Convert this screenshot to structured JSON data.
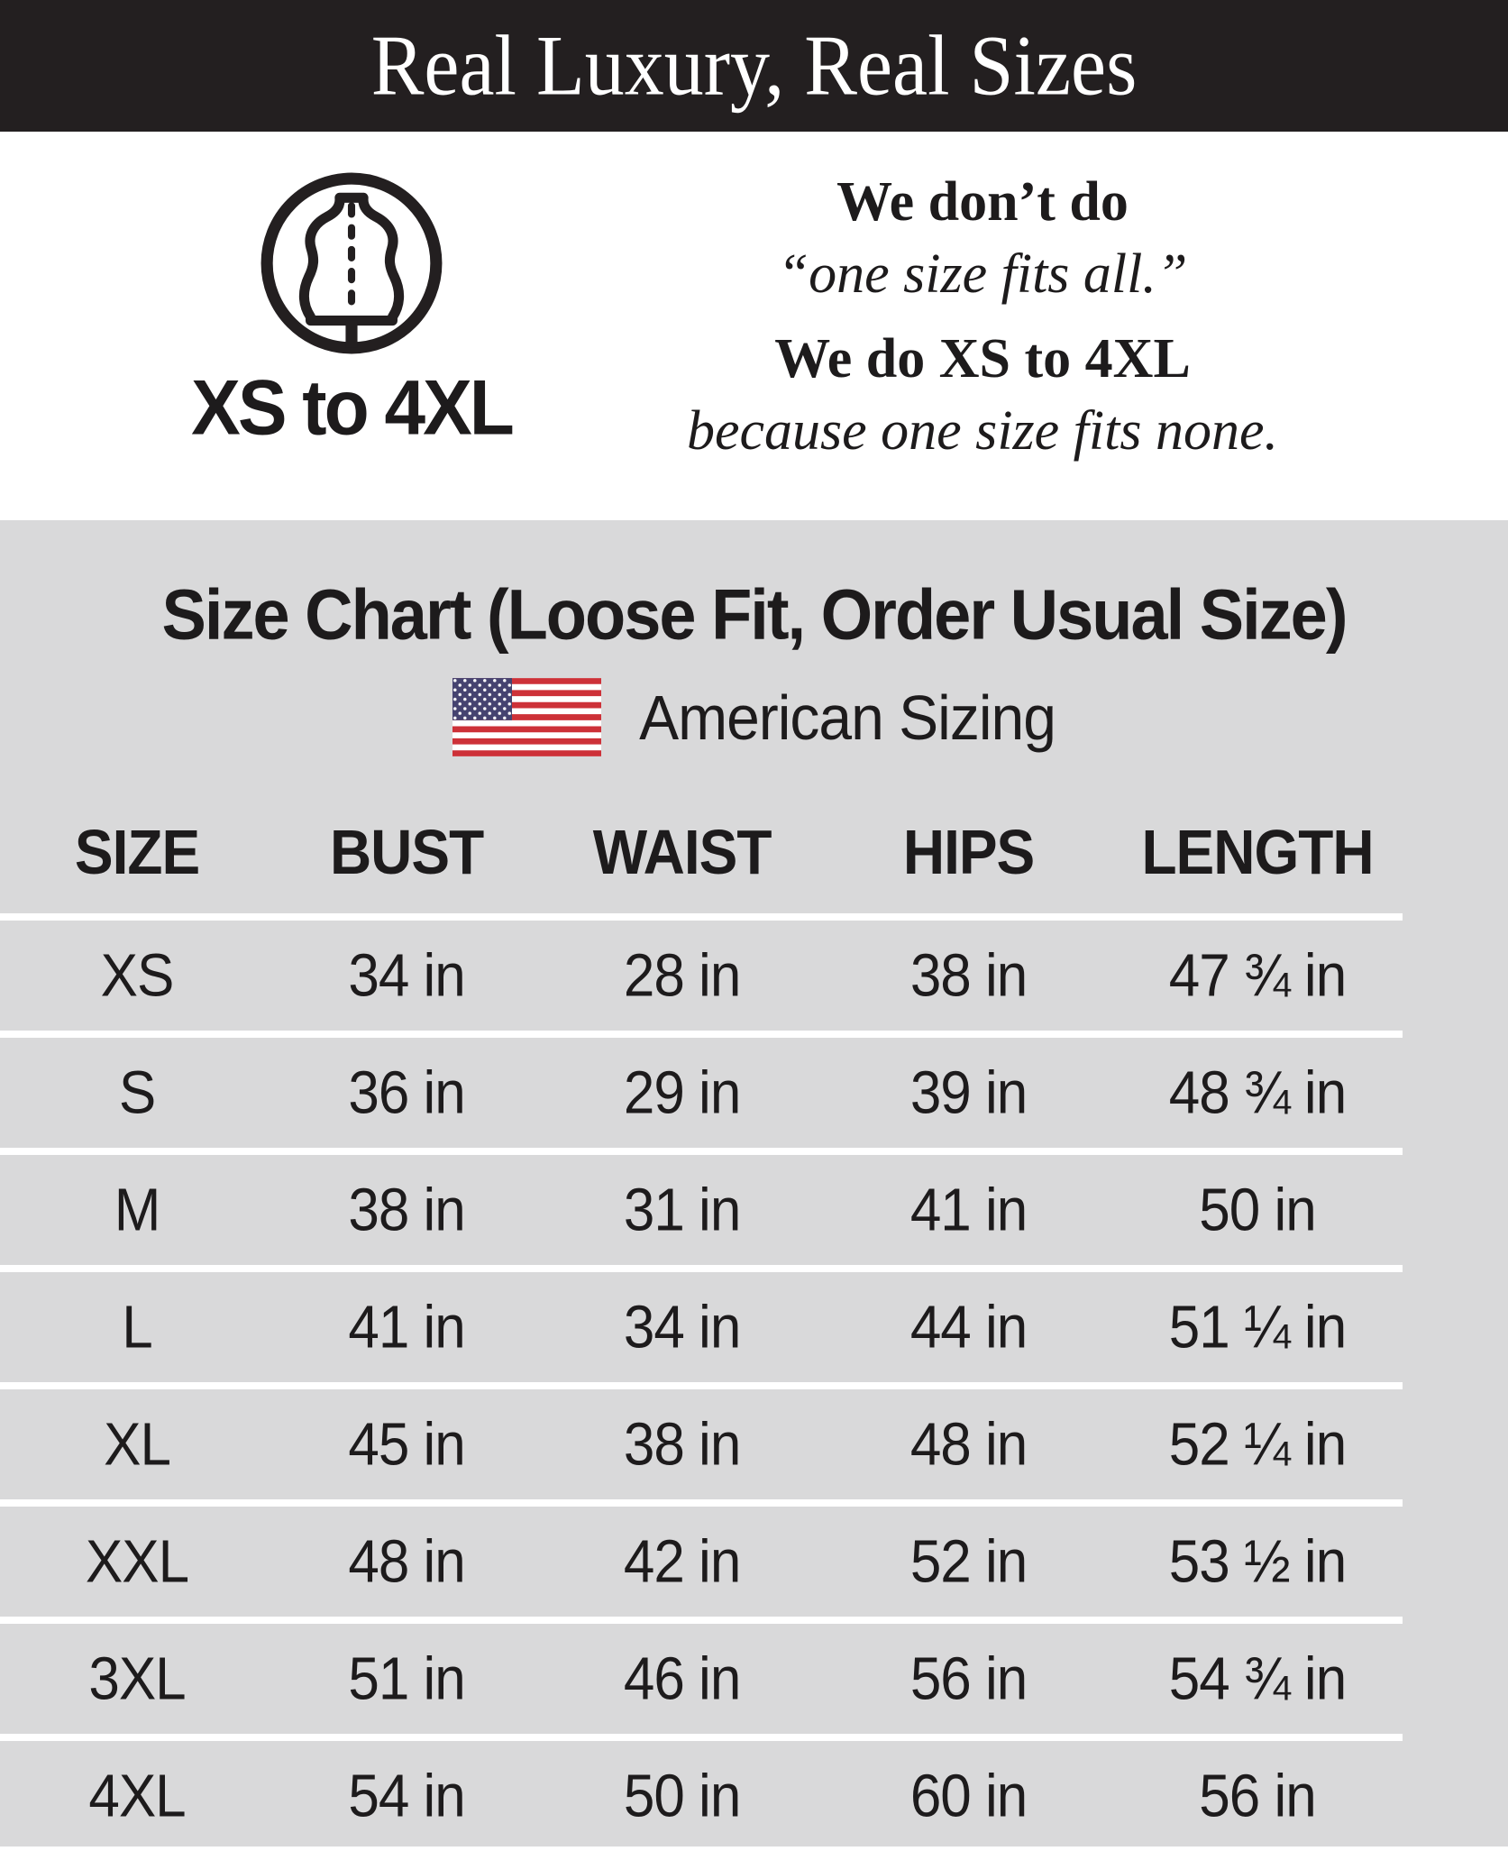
{
  "banner": {
    "title": "Real Luxury, Real Sizes"
  },
  "intro": {
    "icon": "dress-form-icon",
    "icon_caption": "XS to 4XL",
    "lines": [
      "We don’t do",
      "“one size fits all.”",
      "We do XS to 4XL",
      "because one size fits none."
    ]
  },
  "size_section": {
    "heading": "Size Chart (Loose Fit, Order Usual Size)",
    "flag_icon": "us-flag-icon",
    "sizing_label": "American Sizing"
  },
  "chart_data": {
    "type": "table",
    "title": "Size Chart (Loose Fit, Order Usual Size)",
    "columns": [
      "SIZE",
      "BUST",
      "WAIST",
      "HIPS",
      "LENGTH"
    ],
    "rows": [
      [
        "XS",
        "34 in",
        "28 in",
        "38 in",
        "47 ¾ in"
      ],
      [
        "S",
        "36 in",
        "29 in",
        "39 in",
        "48 ¾ in"
      ],
      [
        "M",
        "38 in",
        "31 in",
        "41 in",
        "50 in"
      ],
      [
        "L",
        "41 in",
        "34 in",
        "44 in",
        "51 ¼ in"
      ],
      [
        "XL",
        "45 in",
        "38 in",
        "48 in",
        "52 ¼ in"
      ],
      [
        "XXL",
        "48 in",
        "42 in",
        "52 in",
        "53 ½ in"
      ],
      [
        "3XL",
        "51 in",
        "46 in",
        "56 in",
        "54 ¾ in"
      ],
      [
        "4XL",
        "54 in",
        "50 in",
        "60 in",
        "56 in"
      ]
    ]
  },
  "colors": {
    "banner_bg": "#231f20",
    "section_bg": "#d9d9da",
    "text": "#1d1b1c",
    "divider": "#ffffff",
    "flag_red": "#cd3138",
    "flag_blue": "#454370"
  }
}
